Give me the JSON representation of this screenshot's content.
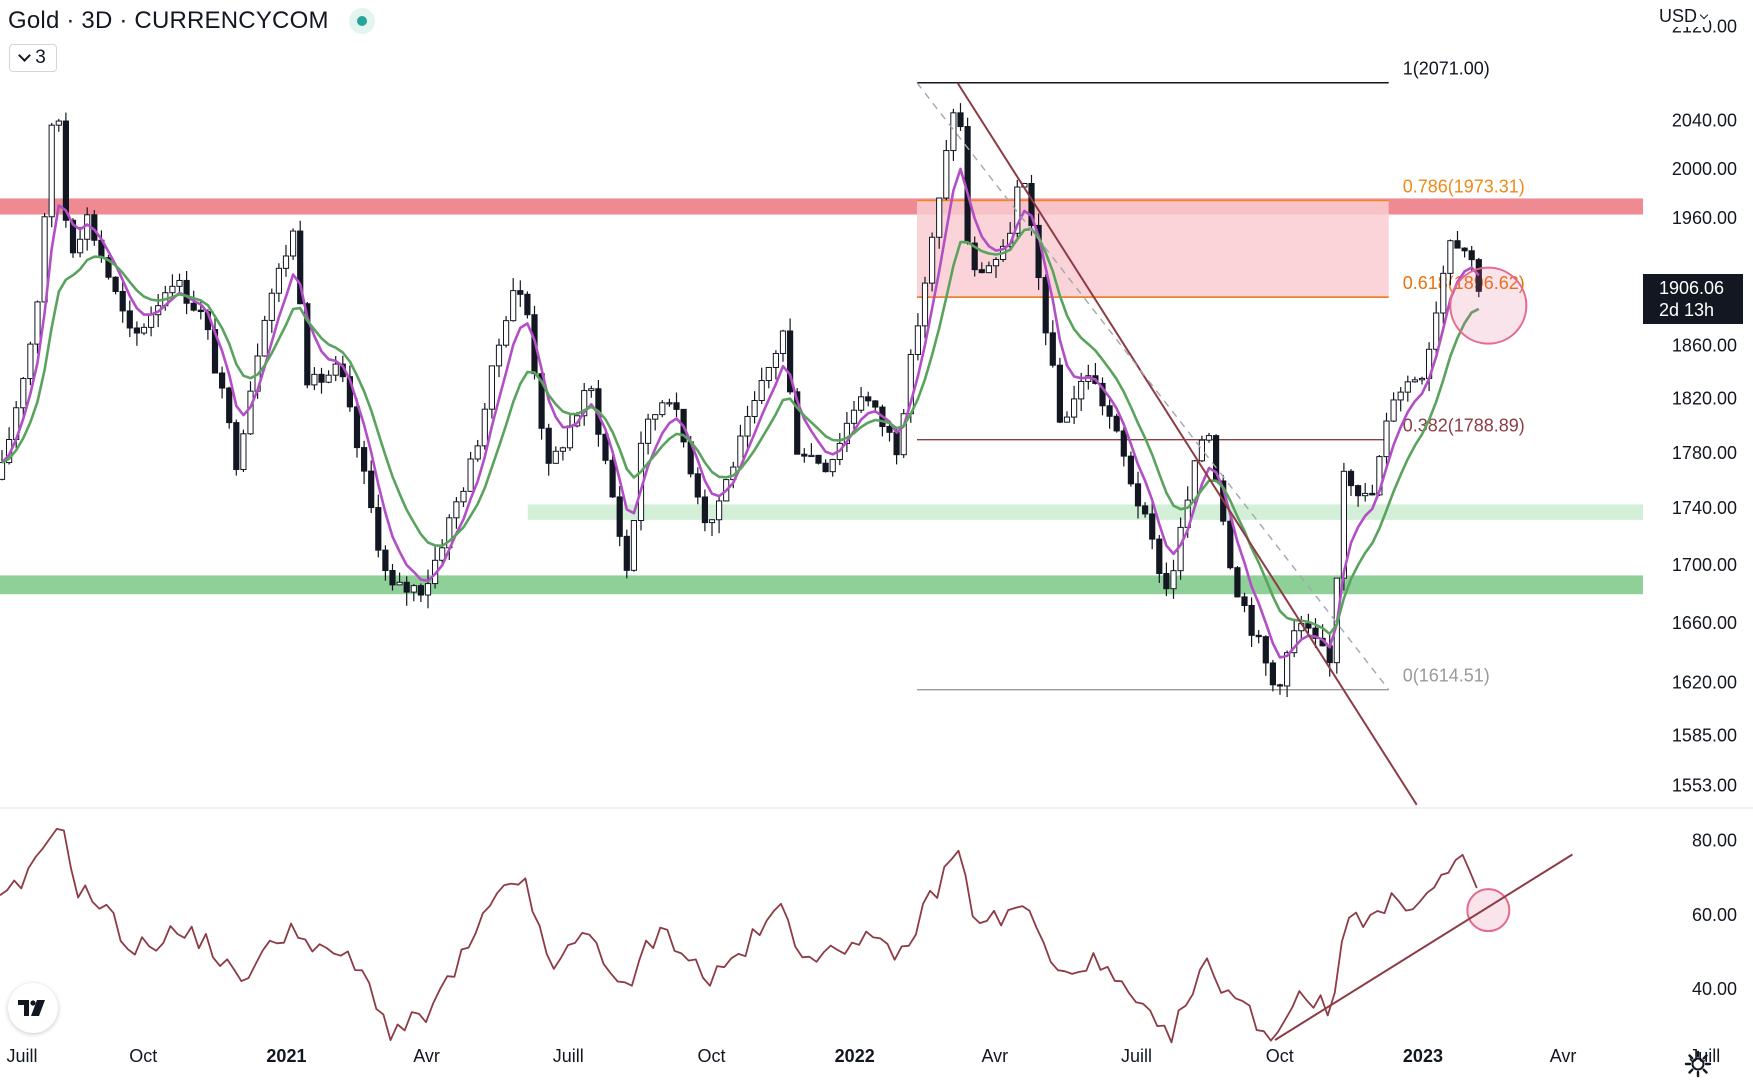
{
  "header": {
    "title": "Gold · 3D · CURRENCYCOM",
    "collapse_count": "3",
    "currency": "USD"
  },
  "price_tag": {
    "price": "1906.06",
    "countdown": "2d 13h"
  },
  "colors": {
    "resistance_zone": "#f08a92",
    "fib_zone_fill": "#f9cdd1",
    "support_zone": "#8fcf98",
    "minor_support_zone": "#d4efd7",
    "candle": "#131722",
    "ema_fast": "#b24fc6",
    "ema_slow": "#5aa35e",
    "trendline": "#8d3c45",
    "rsi": "#8d3c45",
    "highlight_circle": "#e56b8e",
    "fib_0786": "#ef8a1a",
    "fib_0618": "#e8720c",
    "fib_0382": "#8d3c45",
    "fib_0": "#9a9a9a"
  },
  "icons": {
    "tv_logo": "tradingview-logo-icon",
    "settings": "gear-icon",
    "collapse": "chevron-down-icon",
    "currency": "chevron-down-icon"
  },
  "chart_data": {
    "type": "candlestick",
    "symbol": "Gold",
    "timeframe": "3D",
    "exchange": "CURRENCYCOM",
    "currency": "USD",
    "price_axis": {
      "ticks": [
        "2120.00",
        "2040.00",
        "2000.00",
        "1960.00",
        "1860.00",
        "1820.00",
        "1780.00",
        "1740.00",
        "1700.00",
        "1660.00",
        "1620.00",
        "1585.00",
        "1553.00"
      ],
      "range": [
        1538,
        2125
      ]
    },
    "time_axis": {
      "ticks": [
        "Juill",
        "Oct",
        "2021",
        "Avr",
        "Juill",
        "Oct",
        "2022",
        "Avr",
        "Juill",
        "Oct",
        "2023",
        "Avr",
        "Juill"
      ],
      "bold_ticks": [
        "2021",
        "2022",
        "2023"
      ],
      "range": [
        "2020-07-01",
        "2023-08-01"
      ]
    },
    "last_price": 1906.06,
    "bar_countdown": "2d 13h",
    "price_path": [
      [
        "2020-07-01",
        1760
      ],
      [
        "2020-07-24",
        1880
      ],
      [
        "2020-08-06",
        2071
      ],
      [
        "2020-08-14",
        1930
      ],
      [
        "2020-08-26",
        1960
      ],
      [
        "2020-09-24",
        1862
      ],
      [
        "2020-10-20",
        1912
      ],
      [
        "2020-11-09",
        1880
      ],
      [
        "2020-11-30",
        1773
      ],
      [
        "2020-12-18",
        1885
      ],
      [
        "2021-01-06",
        1950
      ],
      [
        "2021-01-15",
        1828
      ],
      [
        "2021-02-04",
        1842
      ],
      [
        "2021-02-18",
        1770
      ],
      [
        "2021-03-08",
        1682
      ],
      [
        "2021-03-31",
        1684
      ],
      [
        "2021-05-01",
        1775
      ],
      [
        "2021-05-26",
        1905
      ],
      [
        "2021-06-04",
        1890
      ],
      [
        "2021-06-18",
        1765
      ],
      [
        "2021-07-15",
        1829
      ],
      [
        "2021-08-09",
        1688
      ],
      [
        "2021-08-16",
        1787
      ],
      [
        "2021-09-03",
        1827
      ],
      [
        "2021-09-29",
        1725
      ],
      [
        "2021-10-21",
        1790
      ],
      [
        "2021-11-16",
        1870
      ],
      [
        "2021-11-24",
        1785
      ],
      [
        "2021-12-15",
        1770
      ],
      [
        "2022-01-05",
        1825
      ],
      [
        "2022-01-28",
        1784
      ],
      [
        "2022-02-24",
        1970
      ],
      [
        "2022-03-08",
        2071
      ],
      [
        "2022-03-16",
        1912
      ],
      [
        "2022-04-08",
        1932
      ],
      [
        "2022-04-18",
        1999
      ],
      [
        "2022-05-13",
        1800
      ],
      [
        "2022-05-31",
        1840
      ],
      [
        "2022-06-14",
        1805
      ],
      [
        "2022-07-21",
        1680
      ],
      [
        "2022-08-15",
        1805
      ],
      [
        "2022-09-01",
        1692
      ],
      [
        "2022-09-28",
        1614
      ],
      [
        "2022-10-13",
        1660
      ],
      [
        "2022-11-03",
        1630
      ],
      [
        "2022-11-11",
        1770
      ],
      [
        "2022-11-28",
        1741
      ],
      [
        "2022-12-13",
        1823
      ],
      [
        "2023-01-02",
        1842
      ],
      [
        "2023-01-19",
        1948
      ],
      [
        "2023-01-31",
        1930
      ],
      [
        "2023-02-06",
        1906
      ]
    ],
    "moving_averages": [
      {
        "name": "ema-fast",
        "color": "#b24fc6"
      },
      {
        "name": "ema-slow",
        "color": "#5aa35e"
      }
    ],
    "fibonacci": {
      "from_date": "2022-02-10",
      "to_date": "2022-12-10",
      "levels": [
        {
          "ratio": 1,
          "value": 2071.0,
          "label": "1(2071.00)"
        },
        {
          "ratio": 0.786,
          "value": 1973.31,
          "label": "0.786(1973.31)"
        },
        {
          "ratio": 0.618,
          "value": 1896.62,
          "label": "0.618(1896.62)"
        },
        {
          "ratio": 0.382,
          "value": 1788.89,
          "label": "0.382(1788.89)"
        },
        {
          "ratio": 0,
          "value": 1614.51,
          "label": "0(1614.51)"
        }
      ],
      "shaded_between": [
        0.618,
        0.786
      ]
    },
    "zones": [
      {
        "name": "resistance",
        "low": 1962,
        "high": 1975,
        "from_date": "2020-07-01",
        "to_date": "2023-06-27"
      },
      {
        "name": "support",
        "low": 1679,
        "high": 1692,
        "from_date": "2020-07-01",
        "to_date": "2023-06-27"
      },
      {
        "name": "minor-support",
        "low": 1731,
        "high": 1742,
        "from_date": "2021-06-05",
        "to_date": "2023-06-15"
      }
    ],
    "trendlines": [
      {
        "name": "downtrend",
        "style": "solid",
        "from": [
          "2022-03-08",
          2071
        ],
        "to": [
          "2022-12-28",
          1540
        ]
      },
      {
        "name": "downtrend-dashed",
        "style": "dashed",
        "from": [
          "2022-02-10",
          2071
        ],
        "to": [
          "2022-12-10",
          1614.51
        ]
      }
    ],
    "highlights": [
      {
        "name": "price-circle",
        "date": "2023-02-12",
        "value": 1890
      },
      {
        "name": "rsi-circle",
        "date": "2023-02-12",
        "value": 61
      }
    ],
    "rsi": {
      "ticks": [
        "80.00",
        "60.00",
        "40.00"
      ],
      "range": [
        26,
        88
      ],
      "series": [
        [
          "2020-07-01",
          63
        ],
        [
          "2020-07-20",
          70
        ],
        [
          "2020-08-07",
          86
        ],
        [
          "2020-08-20",
          67
        ],
        [
          "2020-09-05",
          62
        ],
        [
          "2020-09-25",
          50
        ],
        [
          "2020-10-20",
          55
        ],
        [
          "2020-11-10",
          53
        ],
        [
          "2020-11-30",
          42
        ],
        [
          "2020-12-18",
          49
        ],
        [
          "2021-01-06",
          58
        ],
        [
          "2021-01-18",
          49
        ],
        [
          "2021-02-04",
          50
        ],
        [
          "2021-02-25",
          40
        ],
        [
          "2021-03-08",
          28
        ],
        [
          "2021-03-31",
          32
        ],
        [
          "2021-04-20",
          45
        ],
        [
          "2021-05-14",
          63
        ],
        [
          "2021-06-04",
          70
        ],
        [
          "2021-06-18",
          45
        ],
        [
          "2021-07-15",
          55
        ],
        [
          "2021-08-09",
          37
        ],
        [
          "2021-08-20",
          52
        ],
        [
          "2021-09-03",
          55
        ],
        [
          "2021-09-29",
          42
        ],
        [
          "2021-10-21",
          50
        ],
        [
          "2021-11-16",
          62
        ],
        [
          "2021-11-24",
          52
        ],
        [
          "2021-12-15",
          48
        ],
        [
          "2022-01-05",
          55
        ],
        [
          "2022-01-28",
          47
        ],
        [
          "2022-02-24",
          68
        ],
        [
          "2022-03-08",
          78
        ],
        [
          "2022-03-18",
          60
        ],
        [
          "2022-04-08",
          58
        ],
        [
          "2022-04-18",
          64
        ],
        [
          "2022-05-13",
          42
        ],
        [
          "2022-05-31",
          48
        ],
        [
          "2022-06-14",
          43
        ],
        [
          "2022-07-21",
          26
        ],
        [
          "2022-08-15",
          46
        ],
        [
          "2022-09-01",
          38
        ],
        [
          "2022-09-28",
          26
        ],
        [
          "2022-10-13",
          40
        ],
        [
          "2022-11-03",
          33
        ],
        [
          "2022-11-14",
          62
        ],
        [
          "2022-11-28",
          58
        ],
        [
          "2022-12-13",
          63
        ],
        [
          "2023-01-02",
          64
        ],
        [
          "2023-01-25",
          75
        ],
        [
          "2023-02-06",
          63
        ]
      ],
      "trendline": {
        "from": [
          "2022-09-28",
          26
        ],
        "to": [
          "2023-04-07",
          76
        ]
      }
    }
  }
}
